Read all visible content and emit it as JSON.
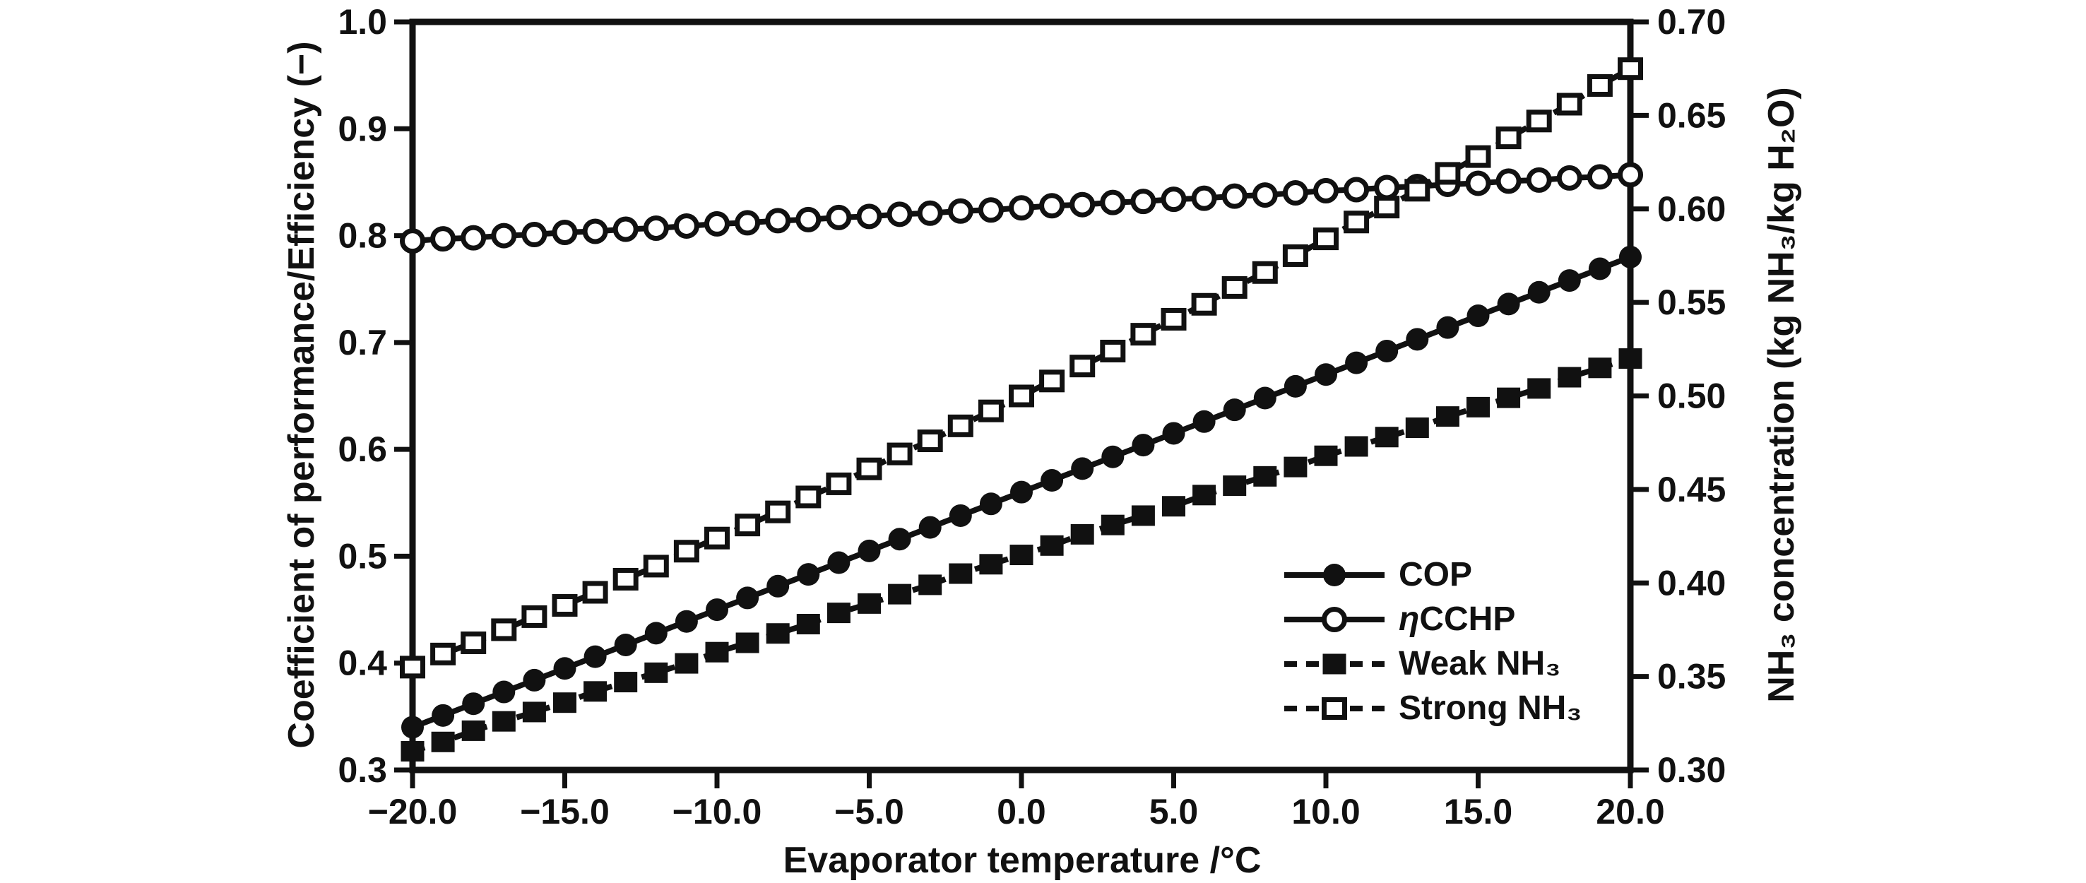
{
  "figure": {
    "background": "#ffffff",
    "ink": "#111111"
  },
  "chart_data": {
    "type": "line",
    "title": "",
    "xlabel": "Evaporator temperature /°C",
    "ylabel_left": "Coefficient of performance/Efficiency (−)",
    "ylabel_right": "NH₃ concentration (kg NH₃/kg H₂O)",
    "xlim": [
      -20,
      20
    ],
    "ylim_left": [
      0.3,
      1.0
    ],
    "ylim_right": [
      0.3,
      0.7
    ],
    "grid": false,
    "legend_position": "inside lower right",
    "x_ticks": [
      {
        "value": -20,
        "label": "−20.0"
      },
      {
        "value": -15,
        "label": "−15.0"
      },
      {
        "value": -10,
        "label": "−10.0"
      },
      {
        "value": -5,
        "label": "−5.0"
      },
      {
        "value": 0,
        "label": "0.0"
      },
      {
        "value": 5,
        "label": "5.0"
      },
      {
        "value": 10,
        "label": "10.0"
      },
      {
        "value": 15,
        "label": "15.0"
      },
      {
        "value": 20,
        "label": "20.0"
      }
    ],
    "y_ticks_left": [
      {
        "value": 1.0,
        "label": "1.0"
      },
      {
        "value": 0.9,
        "label": "0.9"
      },
      {
        "value": 0.8,
        "label": "0.8"
      },
      {
        "value": 0.7,
        "label": "0.7"
      },
      {
        "value": 0.6,
        "label": "0.6"
      },
      {
        "value": 0.5,
        "label": "0.5"
      },
      {
        "value": 0.4,
        "label": "0.4"
      },
      {
        "value": 0.3,
        "label": "0.3"
      }
    ],
    "y_ticks_right": [
      {
        "value": 0.7,
        "label": "0.70"
      },
      {
        "value": 0.65,
        "label": "0.65"
      },
      {
        "value": 0.6,
        "label": "0.60"
      },
      {
        "value": 0.55,
        "label": "0.55"
      },
      {
        "value": 0.5,
        "label": "0.50"
      },
      {
        "value": 0.45,
        "label": "0.45"
      },
      {
        "value": 0.4,
        "label": "0.40"
      },
      {
        "value": 0.35,
        "label": "0.35"
      },
      {
        "value": 0.3,
        "label": "0.30"
      }
    ],
    "x": [
      -20,
      -19,
      -18,
      -17,
      -16,
      -15,
      -14,
      -13,
      -12,
      -11,
      -10,
      -9,
      -8,
      -7,
      -6,
      -5,
      -4,
      -3,
      -2,
      -1,
      0,
      1,
      2,
      3,
      4,
      5,
      6,
      7,
      8,
      9,
      10,
      11,
      12,
      13,
      14,
      15,
      16,
      17,
      18,
      19,
      20
    ],
    "series": [
      {
        "name": "COP",
        "legend_prefix": "",
        "legend_text": "COP",
        "axis": "left",
        "line": "solid",
        "marker": "circle-filled",
        "values": [
          0.34,
          0.351,
          0.362,
          0.373,
          0.384,
          0.395,
          0.406,
          0.417,
          0.428,
          0.439,
          0.45,
          0.461,
          0.472,
          0.483,
          0.494,
          0.505,
          0.516,
          0.527,
          0.538,
          0.549,
          0.56,
          0.571,
          0.582,
          0.593,
          0.604,
          0.615,
          0.626,
          0.637,
          0.648,
          0.659,
          0.67,
          0.681,
          0.692,
          0.703,
          0.714,
          0.725,
          0.736,
          0.747,
          0.758,
          0.769,
          0.78
        ]
      },
      {
        "name": "ηCCHP",
        "legend_prefix": "η",
        "legend_text": "CCHP",
        "axis": "left",
        "line": "solid",
        "marker": "circle-open",
        "values": [
          0.795,
          0.797,
          0.798,
          0.8,
          0.801,
          0.803,
          0.804,
          0.806,
          0.807,
          0.809,
          0.811,
          0.812,
          0.814,
          0.815,
          0.817,
          0.818,
          0.82,
          0.821,
          0.823,
          0.824,
          0.826,
          0.828,
          0.829,
          0.831,
          0.832,
          0.834,
          0.835,
          0.837,
          0.838,
          0.84,
          0.842,
          0.843,
          0.845,
          0.846,
          0.848,
          0.849,
          0.851,
          0.852,
          0.854,
          0.855,
          0.857
        ]
      },
      {
        "name": "Weak NH₃",
        "legend_prefix": "",
        "legend_text": "Weak NH₃",
        "axis": "right",
        "line": "dashed",
        "marker": "square-filled",
        "values": [
          0.31,
          0.315,
          0.321,
          0.326,
          0.331,
          0.336,
          0.342,
          0.347,
          0.352,
          0.357,
          0.363,
          0.368,
          0.373,
          0.378,
          0.384,
          0.389,
          0.394,
          0.399,
          0.405,
          0.41,
          0.415,
          0.42,
          0.426,
          0.431,
          0.436,
          0.441,
          0.447,
          0.452,
          0.457,
          0.462,
          0.468,
          0.473,
          0.478,
          0.483,
          0.489,
          0.494,
          0.499,
          0.504,
          0.51,
          0.515,
          0.52
        ]
      },
      {
        "name": "Strong NH₃",
        "legend_prefix": "",
        "legend_text": "Strong NH₃",
        "axis": "right",
        "line": "dashed",
        "marker": "square-open",
        "values": [
          0.355,
          0.362,
          0.368,
          0.375,
          0.382,
          0.388,
          0.395,
          0.402,
          0.409,
          0.417,
          0.424,
          0.431,
          0.438,
          0.446,
          0.453,
          0.461,
          0.469,
          0.476,
          0.484,
          0.492,
          0.5,
          0.508,
          0.516,
          0.524,
          0.533,
          0.541,
          0.549,
          0.558,
          0.566,
          0.575,
          0.584,
          0.593,
          0.601,
          0.61,
          0.619,
          0.628,
          0.638,
          0.647,
          0.656,
          0.666,
          0.675
        ]
      }
    ]
  }
}
